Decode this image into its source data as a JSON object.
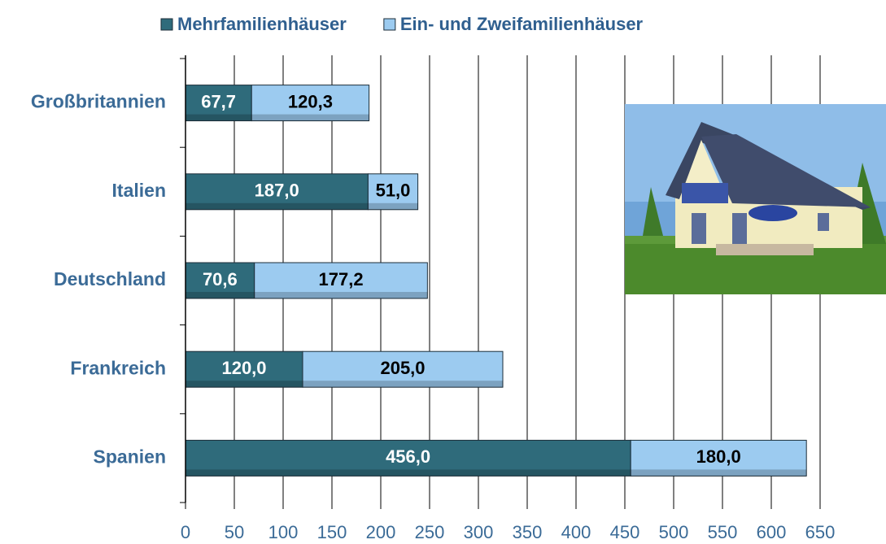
{
  "chart_data": {
    "type": "stacked-bar-horizontal",
    "categories": [
      "Großbritannien",
      "Italien",
      "Deutschland",
      "Frankreich",
      "Spanien"
    ],
    "series": [
      {
        "name": "Mehrfamilienhäuser",
        "color": "#2f6b7b",
        "label_color": "#ffffff",
        "values": [
          67.7,
          187.0,
          70.6,
          120.0,
          456.0
        ],
        "value_labels": [
          "67,7",
          "187,0",
          "70,6",
          "120,0",
          "456,0"
        ]
      },
      {
        "name": "Ein- und Zweifamilienhäuser",
        "color": "#9ccbf0",
        "label_color": "#000000",
        "values": [
          120.3,
          51.0,
          177.2,
          205.0,
          180.0
        ],
        "value_labels": [
          "120,3",
          "51,0",
          "177,2",
          "205,0",
          "180,0"
        ]
      }
    ],
    "xlim": [
      0,
      650
    ],
    "xticks": [
      0,
      50,
      100,
      150,
      200,
      250,
      300,
      350,
      400,
      450,
      500,
      550,
      600,
      650
    ],
    "grid": true,
    "legend": "top"
  }
}
